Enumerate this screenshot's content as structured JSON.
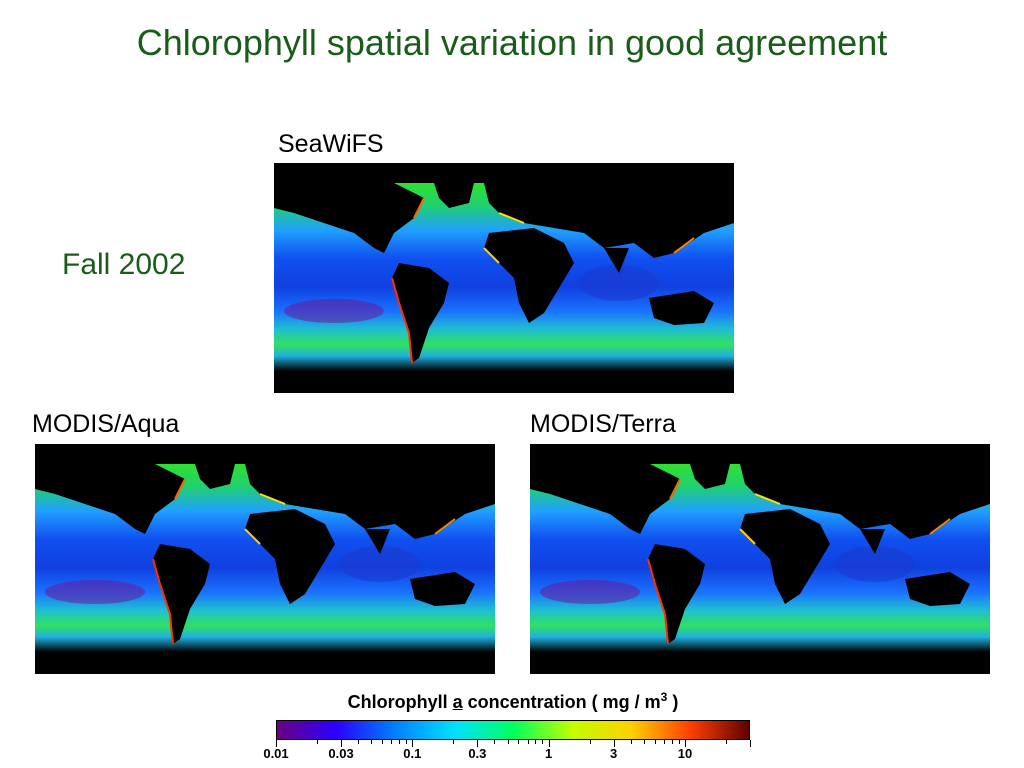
{
  "title": "Chlorophyll spatial variation in good agreement",
  "season_label": "Fall 2002",
  "maps": [
    {
      "label": "SeaWiFS",
      "image": "global chlorophyll map"
    },
    {
      "label": "MODIS/Aqua",
      "image": "global chlorophyll map"
    },
    {
      "label": "MODIS/Terra",
      "image": "global chlorophyll map"
    }
  ],
  "colorbar": {
    "title_pre": "Chlorophyll ",
    "title_a": "a",
    "title_post": " concentration ( mg / m",
    "title_sup": "3",
    "title_end": " )",
    "scale": "log",
    "min": 0.01,
    "max": 30,
    "tick_labels": [
      "0.01",
      "0.03",
      "0.1",
      "0.3",
      "1",
      "3",
      "10"
    ],
    "tick_values": [
      0.01,
      0.03,
      0.1,
      0.3,
      1,
      3,
      10
    ],
    "colors": [
      "#6a0080",
      "#2a00ff",
      "#0080ff",
      "#00e0ff",
      "#00ff60",
      "#c0ff00",
      "#ffd000",
      "#ff4000",
      "#600000"
    ]
  }
}
